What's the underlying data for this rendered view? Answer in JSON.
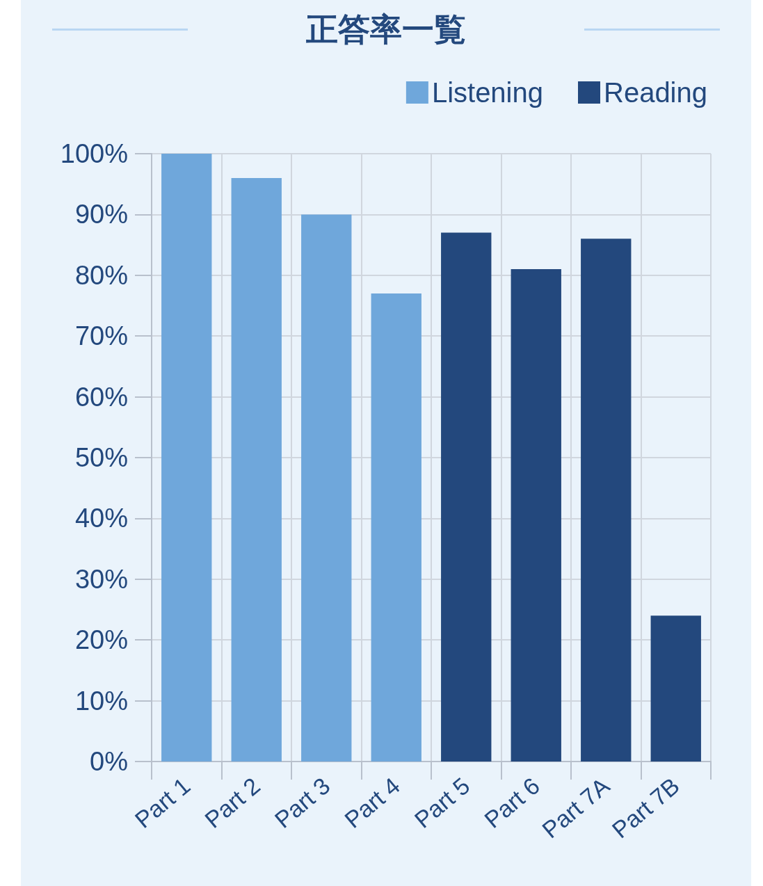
{
  "chart_data": {
    "type": "bar",
    "title": "正答率一覧",
    "categories": [
      "Part 1",
      "Part 2",
      "Part 3",
      "Part 4",
      "Part 5",
      "Part 6",
      "Part 7A",
      "Part 7B"
    ],
    "series": [
      {
        "name": "Listening",
        "color": "#6fa7db",
        "values": [
          100,
          96,
          90,
          77,
          null,
          null,
          null,
          null
        ]
      },
      {
        "name": "Reading",
        "color": "#23487d",
        "values": [
          null,
          null,
          null,
          null,
          87,
          81,
          86,
          24
        ]
      }
    ],
    "ylim": [
      0,
      100
    ],
    "yticks": [
      {
        "value": 0,
        "label": "0%"
      },
      {
        "value": 10,
        "label": "10%"
      },
      {
        "value": 20,
        "label": "20%"
      },
      {
        "value": 30,
        "label": "30%"
      },
      {
        "value": 40,
        "label": "40%"
      },
      {
        "value": 50,
        "label": "50%"
      },
      {
        "value": 60,
        "label": "60%"
      },
      {
        "value": 70,
        "label": "70%"
      },
      {
        "value": 80,
        "label": "80%"
      },
      {
        "value": 90,
        "label": "90%"
      },
      {
        "value": 100,
        "label": "100%"
      }
    ],
    "grid": true,
    "legend": "top right"
  }
}
